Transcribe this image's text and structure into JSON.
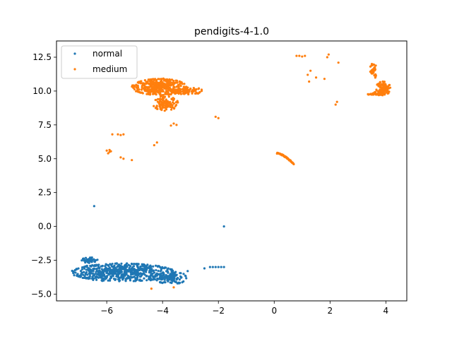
{
  "chart_data": {
    "type": "scatter",
    "title": "pendigits-4-1.0",
    "xlabel": "",
    "ylabel": "",
    "xlim": [
      -7.8,
      4.75
    ],
    "ylim": [
      -5.5,
      13.7
    ],
    "xticks": [
      -6,
      -4,
      -2,
      0,
      2,
      4
    ],
    "xtick_labels": [
      "−6",
      "−4",
      "−2",
      "0",
      "2",
      "4"
    ],
    "yticks": [
      -5.0,
      -2.5,
      0.0,
      2.5,
      5.0,
      7.5,
      10.0,
      12.5
    ],
    "ytick_labels": [
      "−5.0",
      "−2.5",
      "0.0",
      "2.5",
      "5.0",
      "7.5",
      "10.0",
      "12.5"
    ],
    "grid": false,
    "legend_position": "upper-left",
    "series": [
      {
        "name": "normal",
        "color": "#1f77b4",
        "clusters": [
          {
            "cx": -5.4,
            "cy": -3.4,
            "rx": 1.8,
            "ry": 0.65,
            "n": 620
          },
          {
            "cx": -3.7,
            "cy": -3.8,
            "rx": 0.55,
            "ry": 0.45,
            "n": 110
          },
          {
            "cx": -6.6,
            "cy": -2.5,
            "rx": 0.3,
            "ry": 0.2,
            "n": 40
          }
        ],
        "points": [
          [
            -6.45,
            1.5
          ],
          [
            -1.8,
            0.0
          ],
          [
            -2.5,
            -3.1
          ],
          [
            -2.3,
            -3.0
          ],
          [
            -2.2,
            -3.0
          ],
          [
            -2.1,
            -3.0
          ],
          [
            -2.0,
            -3.0
          ],
          [
            -1.9,
            -3.0
          ],
          [
            -1.8,
            -3.0
          ],
          [
            -3.1,
            -3.3
          ]
        ]
      },
      {
        "name": "medium",
        "color": "#ff7f0e",
        "clusters": [
          {
            "cx": -4.1,
            "cy": 10.3,
            "rx": 0.95,
            "ry": 0.6,
            "n": 420
          },
          {
            "cx": -3.9,
            "cy": 9.1,
            "rx": 0.45,
            "ry": 0.55,
            "n": 110
          },
          {
            "cx": -3.1,
            "cy": 10.0,
            "rx": 0.5,
            "ry": 0.25,
            "n": 60
          },
          {
            "cx": 3.9,
            "cy": 10.2,
            "rx": 0.25,
            "ry": 0.5,
            "n": 110
          },
          {
            "cx": 3.55,
            "cy": 11.5,
            "rx": 0.12,
            "ry": 0.6,
            "n": 40
          },
          {
            "cx": 3.6,
            "cy": 9.8,
            "rx": 0.25,
            "ry": 0.12,
            "n": 30
          }
        ],
        "points": [
          [
            -6.0,
            5.6
          ],
          [
            -5.9,
            5.5
          ],
          [
            -5.95,
            5.4
          ],
          [
            -5.85,
            5.55
          ],
          [
            -5.9,
            5.65
          ],
          [
            -5.5,
            5.1
          ],
          [
            -5.4,
            5.0
          ],
          [
            -5.1,
            4.9
          ],
          [
            -5.8,
            6.8
          ],
          [
            -5.6,
            6.8
          ],
          [
            -5.5,
            6.75
          ],
          [
            -5.4,
            6.8
          ],
          [
            -4.3,
            6.0
          ],
          [
            -4.2,
            6.2
          ],
          [
            -3.5,
            7.5
          ],
          [
            -3.6,
            7.6
          ],
          [
            -3.7,
            7.45
          ],
          [
            -2.1,
            8.1
          ],
          [
            -2.0,
            8.0
          ],
          [
            -2.6,
            10.1
          ],
          [
            -2.7,
            10.2
          ],
          [
            0.8,
            12.6
          ],
          [
            0.9,
            12.6
          ],
          [
            1.0,
            12.55
          ],
          [
            1.1,
            12.6
          ],
          [
            1.9,
            12.5
          ],
          [
            1.95,
            12.7
          ],
          [
            1.8,
            10.9
          ],
          [
            1.5,
            11.0
          ],
          [
            1.3,
            11.5
          ],
          [
            1.2,
            11.2
          ],
          [
            1.25,
            10.7
          ],
          [
            2.3,
            12.1
          ],
          [
            2.2,
            9.0
          ],
          [
            2.25,
            9.2
          ],
          [
            -4.4,
            -4.6
          ],
          [
            -3.6,
            -4.5
          ]
        ],
        "arc": {
          "x_from": 0.1,
          "x_to": 0.7,
          "y_from": 5.4,
          "y_to": 4.6,
          "n": 55
        }
      }
    ]
  }
}
